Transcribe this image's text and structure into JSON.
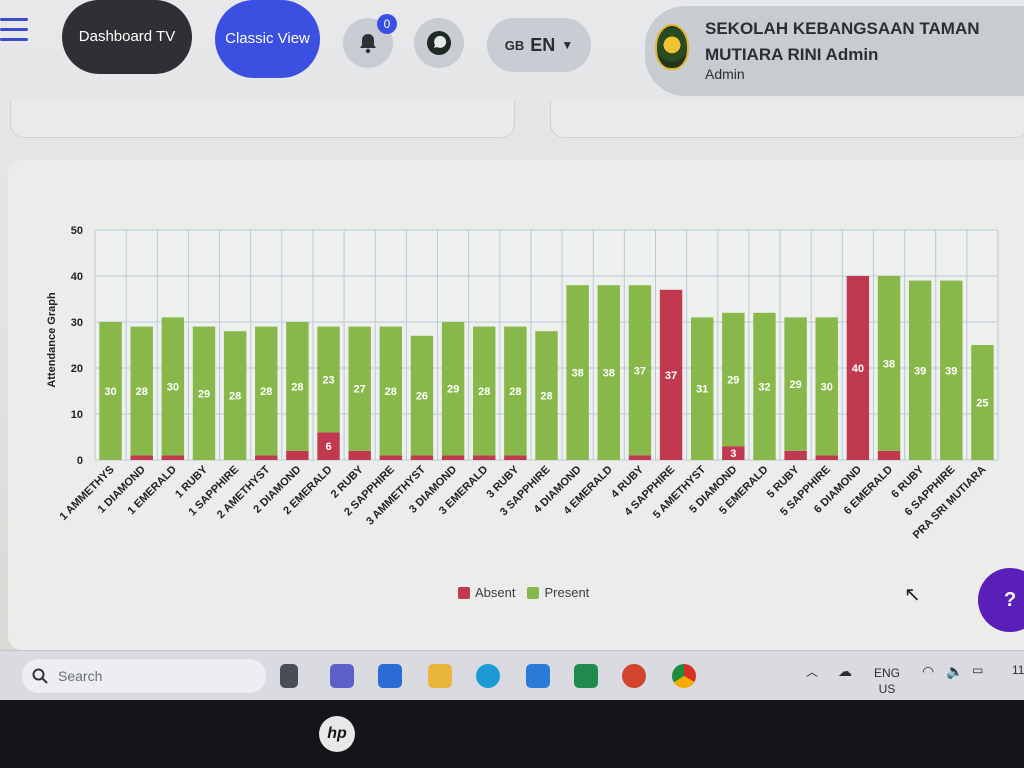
{
  "header": {
    "dashboard_tv_label": "Dashboard TV",
    "classic_view_label": "Classic View",
    "notification_count": "0",
    "language_flag": "GB",
    "language_code": "EN",
    "school_name": "SEKOLAH KEBANGSAAN TAMAN MUTIARA RINI Admin",
    "user_role": "Admin"
  },
  "chart_data": {
    "type": "bar",
    "stacked": true,
    "title": "",
    "ylabel": "Attendance Graph",
    "xlabel": "",
    "ylim": [
      0,
      50
    ],
    "yticks": [
      0,
      10,
      20,
      30,
      40,
      50
    ],
    "grid": true,
    "legend_position": "bottom",
    "categories": [
      "1 AMMETHYS",
      "1 DIAMOND",
      "1 EMERALD",
      "1 RUBY",
      "1 SAPPHIRE",
      "2 AMETHYST",
      "2 DIAMOND",
      "2 EMERALD",
      "2 RUBY",
      "2 SAPPHIRE",
      "3 AMMETHYST",
      "3 DIAMOND",
      "3 EMERALD",
      "3 RUBY",
      "3 SAPPHIRE",
      "4 DIAMOND",
      "4 EMERALD",
      "4 RUBY",
      "4 SAPPHIRE",
      "5 AMETHYST",
      "5 DIAMOND",
      "5 EMERALD",
      "5 RUBY",
      "5 SAPPHIRE",
      "6 DIAMOND",
      "6 EMERALD",
      "6 RUBY",
      "6 SAPPHIRE",
      "PRA SRI MUTIARA"
    ],
    "series": [
      {
        "name": "Absent",
        "color": "#c0394f",
        "values": [
          0,
          1,
          1,
          0,
          0,
          1,
          2,
          6,
          2,
          1,
          1,
          1,
          1,
          1,
          0,
          0,
          0,
          1,
          37,
          0,
          3,
          0,
          2,
          1,
          40,
          2,
          0,
          0,
          0
        ],
        "labels": [
          "",
          "",
          "",
          "",
          "",
          "",
          "",
          "6",
          "",
          "",
          "",
          "",
          "",
          "",
          "",
          "",
          "",
          "",
          "37",
          "",
          "3",
          "",
          "",
          "",
          "40",
          "",
          "",
          "",
          ""
        ]
      },
      {
        "name": "Present",
        "color": "#88b84a",
        "values": [
          30,
          28,
          30,
          29,
          28,
          28,
          28,
          23,
          27,
          28,
          26,
          29,
          28,
          28,
          28,
          38,
          38,
          37,
          0,
          31,
          29,
          32,
          29,
          30,
          0,
          38,
          39,
          39,
          25
        ],
        "labels": [
          "30",
          "28",
          "30",
          "29",
          "28",
          "28",
          "28",
          "23",
          "27",
          "28",
          "26",
          "29",
          "28",
          "28",
          "28",
          "38",
          "38",
          "37",
          "",
          "31",
          "29",
          "32",
          "29",
          "30",
          "",
          "38",
          "39",
          "39",
          "25"
        ]
      }
    ]
  },
  "help_label": "?",
  "taskbar": {
    "search_placeholder": "Search",
    "lang_line1": "ENG",
    "lang_line2": "US",
    "clock_partial": "11"
  },
  "bezel": {
    "brand": "hp"
  }
}
